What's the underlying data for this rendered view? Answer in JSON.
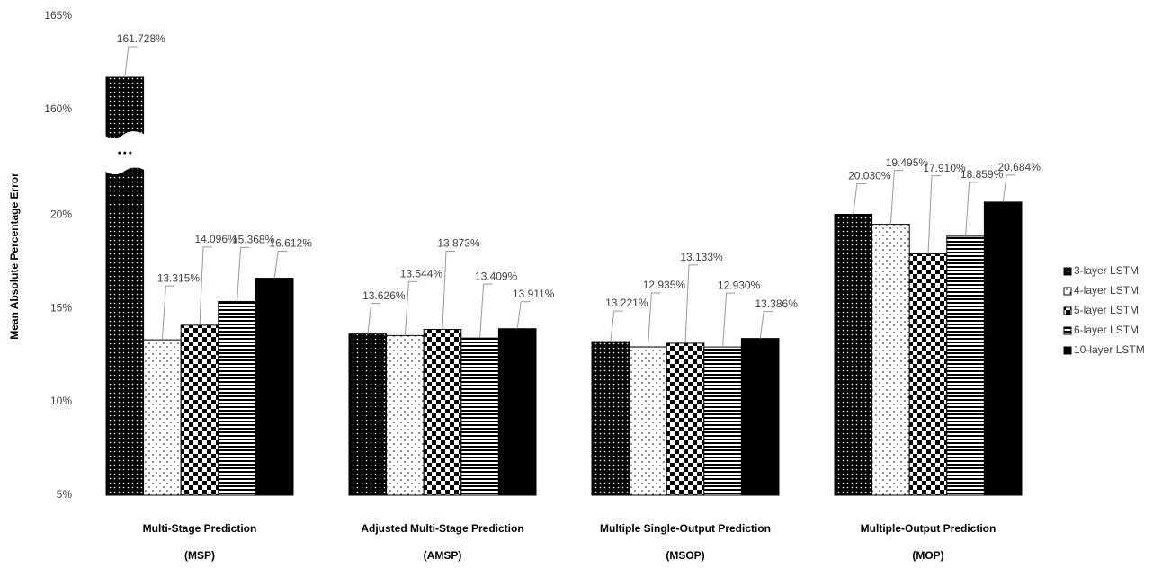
{
  "chart_data": {
    "type": "bar",
    "y_label": "Mean Absolute Percentage Error",
    "categories": [
      "Multi-Stage Prediction",
      "Adjusted Multi-Stage Prediction",
      "Multiple Single-Output Prediction",
      "Multiple-Output Prediction"
    ],
    "category_abbreviations": [
      "(MSP)",
      "(AMSP)",
      "(MSOP)",
      "(MOP)"
    ],
    "series": [
      {
        "name": "3-layer LSTM",
        "color": "#000000",
        "pattern": "dots-dark",
        "values": [
          161.728,
          13.626,
          13.221,
          20.03
        ],
        "value_labels": [
          "161.728%",
          "13.626%",
          "13.221%",
          "20.030%"
        ]
      },
      {
        "name": "4-layer LSTM",
        "color": "#000000",
        "pattern": "dots-light",
        "values": [
          13.315,
          13.544,
          12.935,
          19.495
        ],
        "value_labels": [
          "13.315%",
          "13.544%",
          "12.935%",
          "19.495%"
        ]
      },
      {
        "name": "5-layer LSTM",
        "color": "#000000",
        "pattern": "checker",
        "values": [
          14.096,
          13.873,
          13.133,
          17.91
        ],
        "value_labels": [
          "14.096%",
          "13.873%",
          "13.133%",
          "17.910%"
        ]
      },
      {
        "name": "6-layer LSTM",
        "color": "#000000",
        "pattern": "stripes",
        "values": [
          15.368,
          13.409,
          12.93,
          18.859
        ],
        "value_labels": [
          "15.368%",
          "13.409%",
          "12.930%",
          "18.859%"
        ]
      },
      {
        "name": "10-layer LSTM",
        "color": "#000000",
        "pattern": "solid",
        "values": [
          16.612,
          13.911,
          13.386,
          20.684
        ],
        "value_labels": [
          "16.612%",
          "13.911%",
          "13.386%",
          "20.684%"
        ]
      }
    ],
    "ylim": [
      5,
      165
    ],
    "y_break": [
      22.5,
      158.5
    ],
    "yticks": [
      {
        "value": 5,
        "label": "5%"
      },
      {
        "value": 10,
        "label": "10%"
      },
      {
        "value": 15,
        "label": "15%"
      },
      {
        "value": 20,
        "label": "20%"
      },
      {
        "value": 160,
        "label": "160%"
      },
      {
        "value": 165,
        "label": "165%"
      }
    ],
    "grid": false,
    "legend": "right"
  }
}
